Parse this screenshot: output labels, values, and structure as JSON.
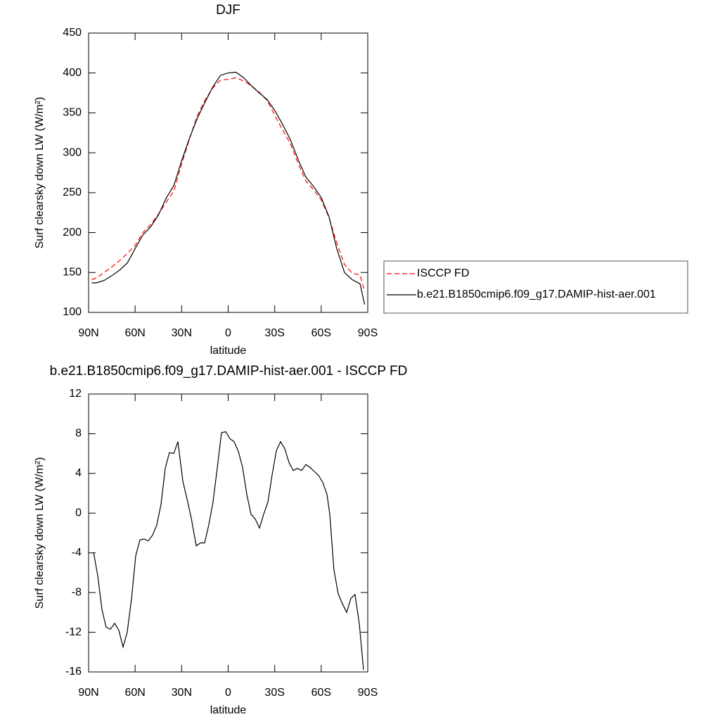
{
  "chart_data": [
    {
      "type": "line",
      "title": "DJF",
      "xlabel": "latitude",
      "ylabel": "Surf clearsky down LW (W/m²)",
      "x": [
        88,
        85,
        80,
        75,
        70,
        65,
        60,
        55,
        50,
        45,
        40,
        35,
        30,
        25,
        20,
        15,
        10,
        5,
        0,
        -5,
        -10,
        -15,
        -20,
        -25,
        -30,
        -35,
        -40,
        -45,
        -50,
        -55,
        -60,
        -65,
        -70,
        -75,
        -80,
        -85,
        -88
      ],
      "series": [
        {
          "name": "ISCCP FD",
          "color": "#ff0000",
          "line_style": "dashed",
          "values": [
            141,
            143,
            150,
            157,
            165,
            174,
            184,
            200,
            210,
            223,
            238,
            252,
            286,
            317,
            346,
            366,
            381,
            391,
            392,
            394,
            390,
            384,
            376,
            366,
            347,
            329,
            312,
            287,
            265,
            254,
            241,
            219,
            187,
            160,
            149,
            147,
            126
          ]
        },
        {
          "name": "b.e21.B1850cmip6.f09_g17.DAMIP-hist-aer.001",
          "color": "#000000",
          "line_style": "solid",
          "values": [
            137,
            137,
            140,
            146,
            153,
            162,
            180,
            197,
            207,
            222,
            243,
            259,
            290,
            318,
            343,
            363,
            382,
            397,
            400,
            401,
            394,
            384,
            375,
            367,
            353,
            336,
            317,
            292,
            270,
            258,
            244,
            220,
            180,
            150,
            141,
            136,
            110
          ]
        }
      ],
      "xlim": [
        90,
        -90
      ],
      "xticks": [
        {
          "value": 90,
          "label": "90N"
        },
        {
          "value": 60,
          "label": "60N"
        },
        {
          "value": 30,
          "label": "30N"
        },
        0,
        {
          "value": -30,
          "label": "30S"
        },
        {
          "value": -60,
          "label": "60S"
        },
        {
          "value": -90,
          "label": "90S"
        }
      ],
      "ylim": [
        100,
        450
      ],
      "yticks": [
        100,
        150,
        200,
        250,
        300,
        350,
        400,
        450
      ],
      "legend": "outside-right"
    },
    {
      "type": "line",
      "title": "b.e21.B1850cmip6.f09_g17.DAMIP-hist-aer.001 - ISCCP FD",
      "xlabel": "latitude",
      "ylabel": "Surf clearsky down LW (W/m²)",
      "x": [
        86.8,
        84.1,
        81.4,
        78.7,
        75.9,
        73.2,
        70.5,
        67.8,
        65.1,
        62.3,
        59.6,
        56.9,
        54.2,
        51.5,
        48.7,
        46.0,
        43.3,
        40.6,
        37.9,
        35.1,
        32.4,
        29.2,
        26.5,
        23.8,
        20.6,
        17.9,
        15.2,
        12.5,
        9.8,
        7.0,
        4.3,
        1.6,
        -1.1,
        -3.8,
        -6.6,
        -9.3,
        -12.0,
        -14.7,
        -17.5,
        -20.2,
        -22.9,
        -25.6,
        -28.3,
        -31.1,
        -33.8,
        -36.5,
        -39.2,
        -41.9,
        -44.7,
        -47.4,
        -50.1,
        -52.8,
        -55.5,
        -58.3,
        -61.0,
        -63.7,
        -65.5,
        -68.2,
        -70.9,
        -73.6,
        -76.4,
        -79.1,
        -81.8,
        -84.6,
        -87.3
      ],
      "series": [
        {
          "name": "b.e21.B1850cmip6.f09_g17.DAMIP-hist-aer.001 - ISCCP FD",
          "color": "#000000",
          "line_style": "solid",
          "values": [
            -3.95,
            -6.3,
            -9.7,
            -11.5,
            -11.7,
            -11.1,
            -11.8,
            -13.5,
            -12.0,
            -8.6,
            -4.3,
            -2.7,
            -2.6,
            -2.8,
            -2.2,
            -1.2,
            0.9,
            4.5,
            6.1,
            6.0,
            7.2,
            3.2,
            1.4,
            -0.5,
            -3.3,
            -3.0,
            -3.0,
            -1.2,
            1.1,
            4.6,
            8.1,
            8.2,
            7.5,
            7.2,
            6.2,
            4.6,
            1.9,
            -0.1,
            -0.6,
            -1.5,
            -0.1,
            1.1,
            3.8,
            6.3,
            7.2,
            6.5,
            5.1,
            4.3,
            4.5,
            4.3,
            4.9,
            4.6,
            4.2,
            3.8,
            3.1,
            1.9,
            -0.1,
            -5.7,
            -8.1,
            -9.1,
            -10.0,
            -8.6,
            -8.2,
            -11.2,
            -15.8
          ]
        }
      ],
      "xlim": [
        90,
        -90
      ],
      "xticks": [
        {
          "value": 90,
          "label": "90N"
        },
        {
          "value": 60,
          "label": "60N"
        },
        {
          "value": 30,
          "label": "30N"
        },
        0,
        {
          "value": -30,
          "label": "30S"
        },
        {
          "value": -60,
          "label": "60S"
        },
        {
          "value": -90,
          "label": "90S"
        }
      ],
      "ylim": [
        -16,
        12
      ],
      "yticks": [
        -16,
        -12,
        -8,
        -4,
        0,
        4,
        8,
        12
      ]
    }
  ]
}
